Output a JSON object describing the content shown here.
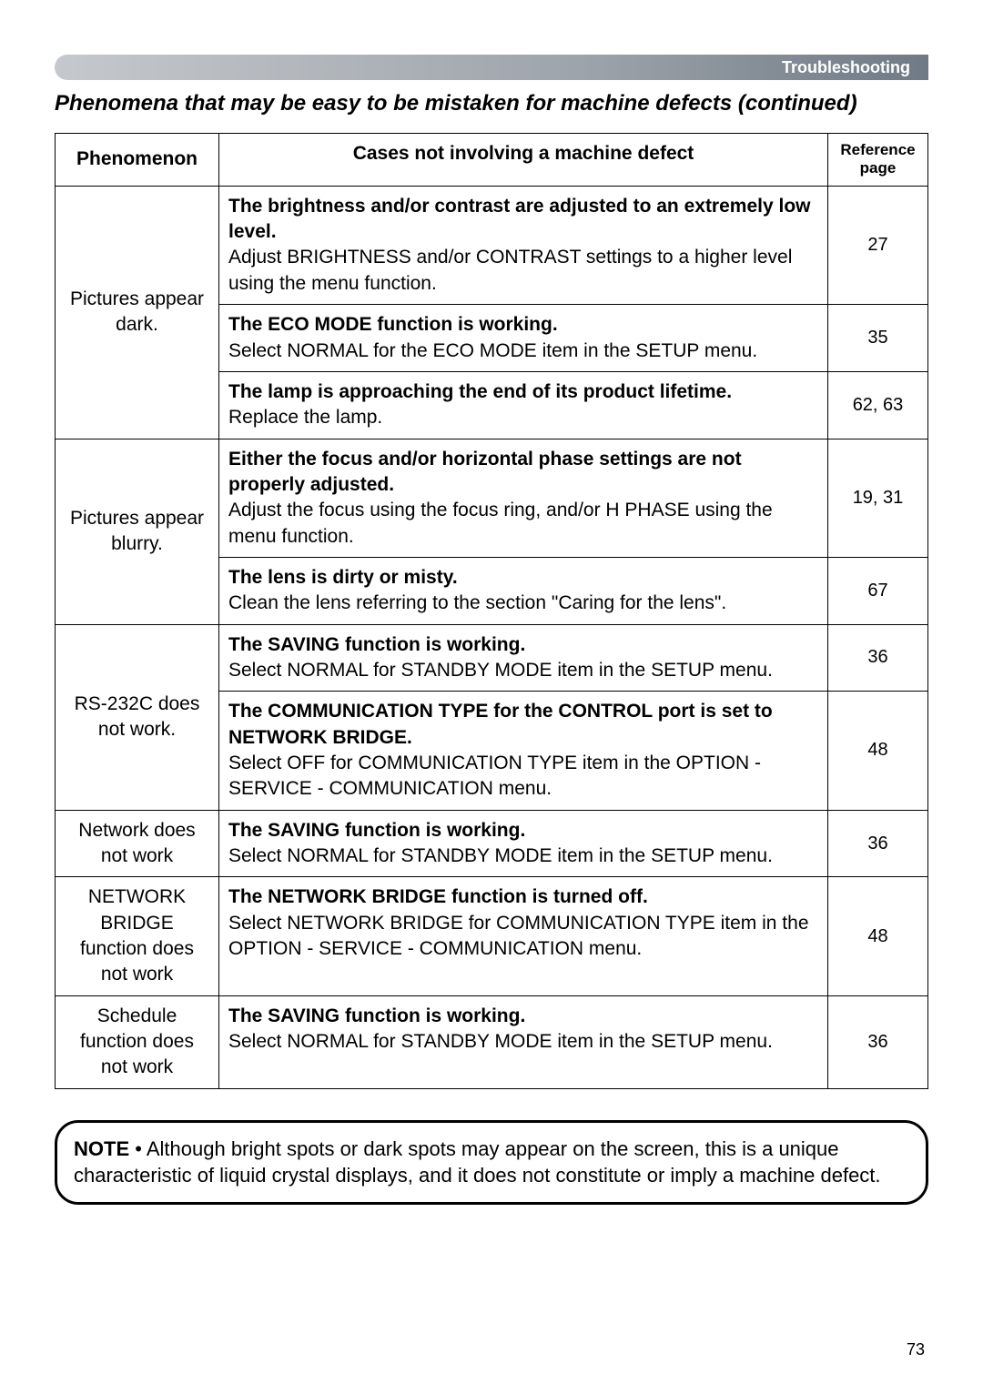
{
  "header": {
    "category": "Troubleshooting"
  },
  "section_title": "Phenomena that may be easy to be mistaken for machine defects (continued)",
  "table": {
    "columns": {
      "phenomenon": "Phenomenon",
      "cases": "Cases not involving a machine defect",
      "ref": "Reference page"
    },
    "rows": [
      {
        "phenomenon": "Pictures appear dark.",
        "cases": [
          {
            "title": "The brightness and/or contrast are adjusted to an extremely low level.",
            "desc": "Adjust BRIGHTNESS and/or CONTRAST settings to a higher level using the menu function.",
            "ref": "27"
          },
          {
            "title": "The ECO MODE function is working.",
            "desc": "Select NORMAL for the ECO MODE item in the SETUP menu.",
            "ref": "35"
          },
          {
            "title": "The lamp is approaching the end of its product lifetime.",
            "desc": "Replace the lamp.",
            "ref": "62, 63"
          }
        ]
      },
      {
        "phenomenon": "Pictures appear blurry.",
        "cases": [
          {
            "title": "Either the focus and/or horizontal phase settings are not properly adjusted.",
            "desc": "Adjust the focus using the focus ring, and/or H PHASE using the menu function.",
            "ref": "19, 31"
          },
          {
            "title": "The lens is dirty or misty.",
            "desc": "Clean the lens referring to the section \"Caring for the lens\".",
            "ref": "67"
          }
        ]
      },
      {
        "phenomenon": "RS-232C does not work.",
        "cases": [
          {
            "title": "The SAVING function is working.",
            "desc": "Select NORMAL for STANDBY MODE item in the SETUP menu.",
            "ref": "36"
          },
          {
            "title": "The COMMUNICATION TYPE for the CONTROL port is set to NETWORK BRIDGE.",
            "desc": "Select OFF for COMMUNICATION TYPE item in the OPTION - SERVICE - COMMUNICATION menu.",
            "ref": "48"
          }
        ]
      },
      {
        "phenomenon": "Network does not work",
        "cases": [
          {
            "title": "The SAVING function is working.",
            "desc": "Select NORMAL for STANDBY MODE item in the SETUP menu.",
            "ref": "36"
          }
        ]
      },
      {
        "phenomenon": "NETWORK BRIDGE function does not work",
        "cases": [
          {
            "title": "The NETWORK BRIDGE function is turned off.",
            "desc": "Select NETWORK BRIDGE for COMMUNICATION TYPE item in the OPTION - SERVICE - COMMUNICATION menu.",
            "ref": "48"
          }
        ]
      },
      {
        "phenomenon": "Schedule function does not work",
        "cases": [
          {
            "title": "The SAVING function is working.",
            "desc": "Select NORMAL for STANDBY MODE item in the SETUP menu.",
            "ref": "36"
          }
        ]
      }
    ]
  },
  "note": {
    "label": "NOTE",
    "text": "• Although bright spots or dark spots may appear on the screen, this is a unique characteristic of liquid crystal displays, and it does not constitute or imply a machine defect."
  },
  "page_number": "73",
  "colors": {
    "header_text": "#ffffff",
    "border": "#000000",
    "background": "#ffffff"
  }
}
